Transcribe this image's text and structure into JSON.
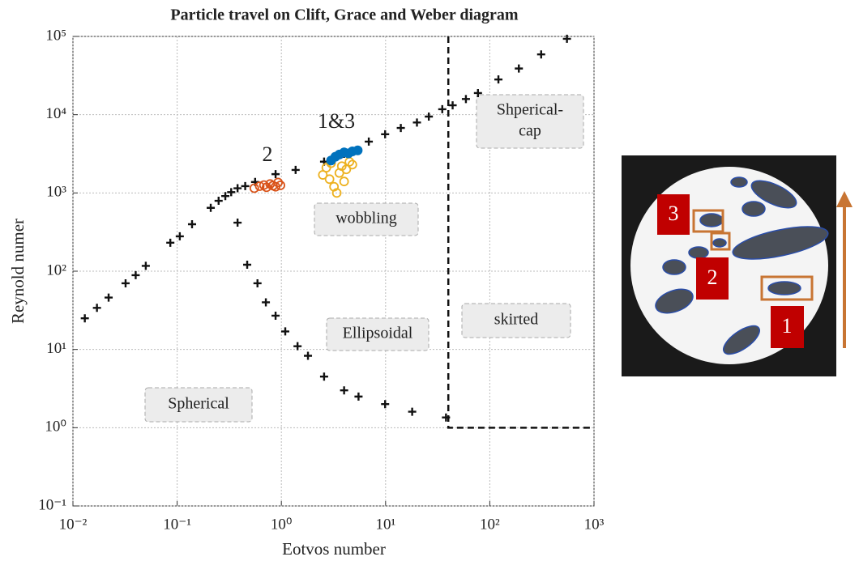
{
  "chart_data": {
    "type": "scatter",
    "title": "Particle travel on Clift, Grace and Weber diagram",
    "x_label": "Eotvos number",
    "y_label": "Reynold numer",
    "log_x": true,
    "log_y": true,
    "grid": true,
    "xlim": [
      0.01,
      1000
    ],
    "ylim": [
      0.1,
      100000
    ],
    "xticks": [
      {
        "value": 0.01,
        "label": "10⁻²"
      },
      {
        "value": 0.1,
        "label": "10⁻¹"
      },
      {
        "value": 1,
        "label": "10⁰"
      },
      {
        "value": 10,
        "label": "10¹"
      },
      {
        "value": 100,
        "label": "10²"
      },
      {
        "value": 1000,
        "label": "10³"
      }
    ],
    "yticks": [
      {
        "value": 0.1,
        "label": "10⁻¹"
      },
      {
        "value": 1,
        "label": "10⁰"
      },
      {
        "value": 10,
        "label": "10¹"
      },
      {
        "value": 100,
        "label": "10²"
      },
      {
        "value": 1000,
        "label": "10³"
      },
      {
        "value": 10000,
        "label": "10⁴"
      },
      {
        "value": 100000,
        "label": "10⁵"
      }
    ],
    "series": [
      {
        "marker": "plus",
        "color": "#111111",
        "x": [
          0.013,
          0.017,
          0.022,
          0.032,
          0.04,
          0.05,
          0.086,
          0.106,
          0.139,
          0.21,
          0.25,
          0.29,
          0.33,
          0.38,
          0.45,
          0.56,
          0.88,
          1.37,
          2.57,
          4.0,
          6.9,
          9.9,
          14,
          20,
          26,
          35,
          44,
          59,
          77,
          121,
          190,
          311,
          550
        ],
        "values": [
          25,
          34,
          46,
          70,
          89,
          117,
          231,
          279,
          398,
          645,
          794,
          912,
          1023,
          1148,
          1222,
          1380,
          1738,
          1968,
          2512,
          3162,
          4529,
          5623,
          6761,
          7943,
          9462,
          11749,
          13183,
          15849,
          18880,
          28184,
          38905,
          58884,
          93325
        ]
      },
      {
        "marker": "plus",
        "color": "#111111",
        "x": [
          0.38,
          0.47,
          0.59,
          0.71,
          0.88,
          1.09,
          1.43,
          1.8,
          2.57,
          4.0,
          5.5,
          9.9,
          18,
          38
        ],
        "values": [
          417,
          121,
          70,
          40,
          27,
          17,
          11,
          8.3,
          4.5,
          3.0,
          2.5,
          2.0,
          1.6,
          1.35
        ]
      },
      {
        "marker": "dashed-line",
        "color": "#111111",
        "x": [
          40,
          40,
          1000
        ],
        "values": [
          100000,
          1,
          1
        ]
      },
      {
        "marker": "open-circle",
        "color": "#d95319",
        "x": [
          0.55,
          0.62,
          0.68,
          0.72,
          0.78,
          0.83,
          0.88,
          0.93,
          0.98
        ],
        "values": [
          1150,
          1220,
          1260,
          1180,
          1300,
          1240,
          1200,
          1360,
          1250
        ]
      },
      {
        "marker": "open-circle",
        "color": "#edb120",
        "x": [
          2.5,
          2.7,
          2.9,
          3.0,
          3.2,
          3.4,
          3.6,
          3.8,
          4.0,
          4.2,
          4.5,
          4.8
        ],
        "values": [
          1700,
          2100,
          1500,
          2400,
          1200,
          1000,
          1800,
          2200,
          1400,
          2000,
          2500,
          2300
        ]
      },
      {
        "marker": "filled-circle",
        "color": "#0072bd",
        "x": [
          3.0,
          3.3,
          3.6,
          4.0,
          4.4,
          4.8,
          5.4
        ],
        "values": [
          2600,
          2900,
          3100,
          3300,
          3200,
          3400,
          3500
        ]
      }
    ],
    "annotations": [
      "2",
      "1&3"
    ],
    "regions": [
      [
        "Shperical-",
        "cap"
      ],
      [
        "wobbling"
      ],
      [
        "Ellipsoidal"
      ],
      [
        "skirted"
      ],
      [
        "Spherical"
      ]
    ]
  },
  "image_labels": [
    "3",
    "2",
    "1"
  ]
}
